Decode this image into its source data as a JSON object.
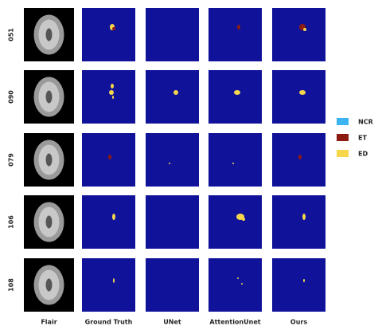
{
  "columns": [
    "Flair",
    "Ground Truth",
    "UNet",
    "AttentionUnet",
    "Ours"
  ],
  "rows": [
    "051",
    "090",
    "079",
    "106",
    "108"
  ],
  "legend": [
    {
      "label": "NCR",
      "color": "#3ab4f2"
    },
    {
      "label": "ET",
      "color": "#8e1b12"
    },
    {
      "label": "ED",
      "color": "#f6d64b"
    }
  ]
}
